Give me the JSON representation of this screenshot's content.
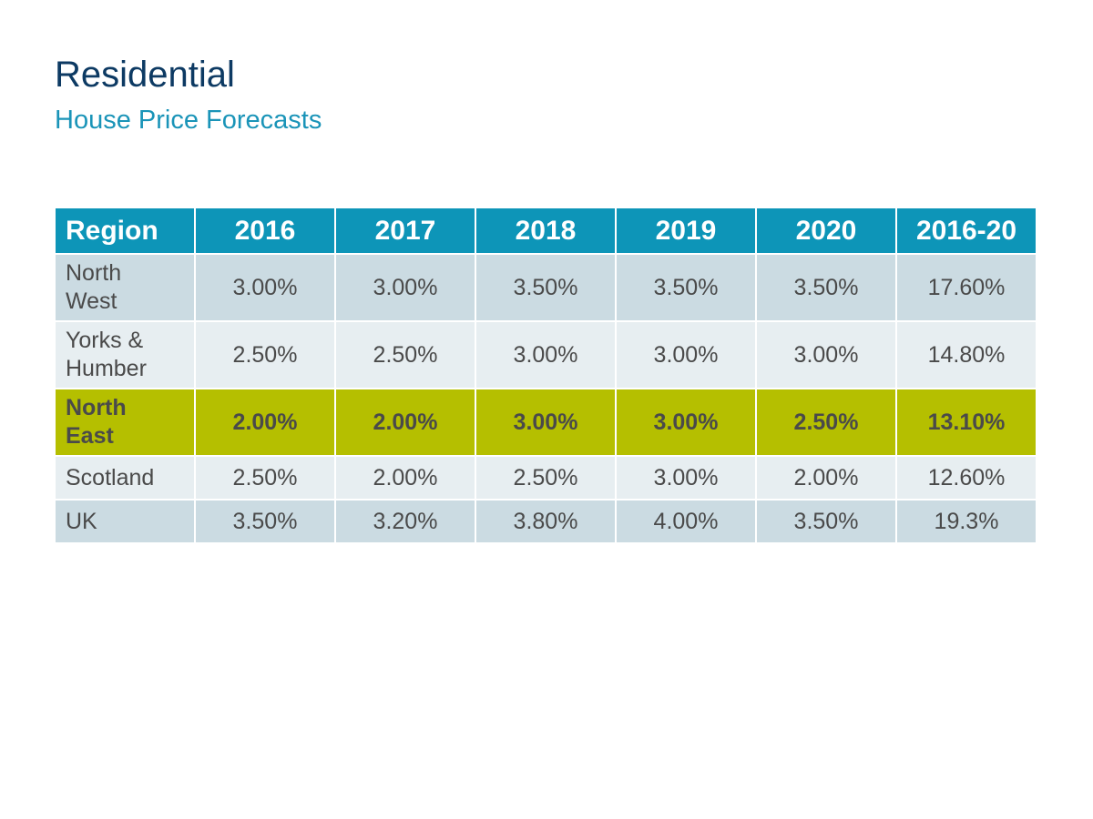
{
  "slide": {
    "title": "Residential",
    "subtitle": "House Price Forecasts"
  },
  "table": {
    "columns": [
      "Region",
      "2016",
      "2017",
      "2018",
      "2019",
      "2020",
      "2016-20"
    ],
    "rows": [
      {
        "region_lines": [
          "North",
          "West"
        ],
        "values": [
          "3.00%",
          "3.00%",
          "3.50%",
          "3.50%",
          "3.50%",
          "17.60%"
        ],
        "highlighted": false
      },
      {
        "region_lines": [
          "Yorks &",
          "Humber"
        ],
        "values": [
          "2.50%",
          "2.50%",
          "3.00%",
          "3.00%",
          "3.00%",
          "14.80%"
        ],
        "highlighted": false
      },
      {
        "region_lines": [
          "North",
          "East"
        ],
        "values": [
          "2.00%",
          "2.00%",
          "3.00%",
          "3.00%",
          "2.50%",
          "13.10%"
        ],
        "highlighted": true
      },
      {
        "region_lines": [
          "Scotland"
        ],
        "values": [
          "2.50%",
          "2.00%",
          "2.50%",
          "3.00%",
          "2.00%",
          "12.60%"
        ],
        "highlighted": false
      },
      {
        "region_lines": [
          "UK"
        ],
        "values": [
          "3.50%",
          "3.20%",
          "3.80%",
          "4.00%",
          "3.50%",
          "19.3%"
        ],
        "highlighted": false
      }
    ]
  },
  "colors": {
    "title": "#0d3a63",
    "subtitle": "#1a94b8",
    "header_bg": "#0d95b8",
    "row_shade_a": "#cbdbe2",
    "row_shade_b": "#e7eef1",
    "highlight_bg": "#b5bf00"
  }
}
